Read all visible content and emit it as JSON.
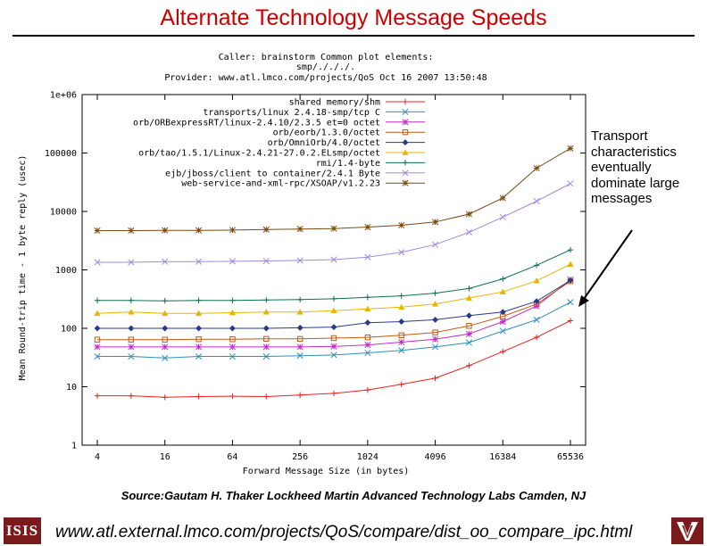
{
  "slide": {
    "title": "Alternate Technology Message Speeds",
    "annotation": "Transport characteristics eventually dominate large messages",
    "source": "Source:Gautam H. Thaker Lockheed Martin Advanced Technology Labs Camden, NJ",
    "footer_url": "www.atl.external.lmco.com/projects/QoS/compare/dist_oo_compare_ipc.html",
    "footer_logo_text": "ISIS"
  },
  "colors": {
    "title": "#cc0000",
    "arrow": "#000000"
  },
  "chart_data": {
    "type": "line",
    "header_lines": [
      "Caller: brainstorm    Common plot elements:",
      "smp/./././.",
      "Provider: www.atl.lmco.com/projects/QoS  Oct 16 2007 13:50:48"
    ],
    "xlabel": "Forward Message Size (in bytes)",
    "ylabel": "Mean Round-trip time - 1 byte reply (usec)",
    "x_scale": "log2",
    "y_scale": "log10",
    "xlim": [
      4,
      65536
    ],
    "ylim": [
      1,
      1000000
    ],
    "x_ticks": [
      4,
      16,
      64,
      256,
      1024,
      4096,
      16384,
      65536
    ],
    "x_tick_labels": [
      "4",
      "16",
      "64",
      "256",
      "1024",
      "4096",
      "16384",
      "65536"
    ],
    "y_ticks": [
      1,
      10,
      100,
      1000,
      10000,
      100000,
      1000000
    ],
    "y_tick_labels": [
      "1",
      "10",
      "100",
      "1000",
      "10000",
      "100000",
      "1e+06"
    ],
    "x": [
      4,
      8,
      16,
      32,
      64,
      128,
      256,
      512,
      1024,
      2048,
      4096,
      8192,
      16384,
      32768,
      65536
    ],
    "series": [
      {
        "name": "shared memory/shm",
        "color": "#e8201e",
        "marker": "plus",
        "values": [
          7,
          7,
          6.6,
          6.8,
          6.9,
          6.8,
          7.2,
          7.7,
          8.8,
          11,
          14,
          23,
          40,
          70,
          135
        ]
      },
      {
        "name": "transports/linux 2.4.18-smp/tcp C",
        "color": "#2f8fb8",
        "marker": "cross",
        "values": [
          33,
          33,
          31,
          33,
          33,
          33,
          34,
          35,
          38,
          42,
          48,
          57,
          90,
          140,
          280
        ]
      },
      {
        "name": "orb/ORBexpressRT/linux-2.4.10/2.3.5 et=0 octet",
        "color": "#c42bc4",
        "marker": "star",
        "values": [
          48,
          48,
          48,
          48,
          48,
          48,
          48,
          49,
          52,
          58,
          65,
          80,
          130,
          240,
          680
        ]
      },
      {
        "name": "orb/eorb/1.3.0/octet",
        "color": "#c05a10",
        "marker": "square",
        "values": [
          64,
          64,
          64,
          65,
          65,
          66,
          66,
          68,
          70,
          76,
          85,
          110,
          160,
          260,
          640
        ]
      },
      {
        "name": "orb/OmniOrb/4.0/octet",
        "color": "#2a3a8a",
        "marker": "diamond",
        "values": [
          100,
          100,
          100,
          100,
          100,
          100,
          102,
          105,
          125,
          130,
          140,
          165,
          190,
          290,
          660
        ]
      },
      {
        "name": "orb/tao/1.5.1/Linux-2.4.21-27.0.2.ELsmp/octet",
        "color": "#e8b400",
        "marker": "triangle",
        "values": [
          180,
          190,
          180,
          180,
          185,
          190,
          190,
          200,
          215,
          230,
          260,
          330,
          420,
          650,
          1250
        ]
      },
      {
        "name": "rmi/1.4-byte",
        "color": "#0f6e56",
        "marker": "plus",
        "values": [
          300,
          300,
          295,
          300,
          300,
          305,
          310,
          320,
          340,
          360,
          400,
          480,
          700,
          1200,
          2200
        ]
      },
      {
        "name": "ejb/jboss/client to container/2.4.1 Byte",
        "color": "#a08ad8",
        "marker": "cross",
        "values": [
          1350,
          1350,
          1380,
          1380,
          1400,
          1420,
          1450,
          1500,
          1650,
          2000,
          2700,
          4400,
          8000,
          15000,
          30000
        ]
      },
      {
        "name": "web-service-and-xml-rpc/XSOAP/v1.2.23",
        "color": "#7a4a10",
        "marker": "star",
        "values": [
          4700,
          4700,
          4750,
          4750,
          4800,
          4900,
          5000,
          5100,
          5400,
          5800,
          6600,
          9000,
          17000,
          55000,
          120000
        ]
      }
    ]
  }
}
